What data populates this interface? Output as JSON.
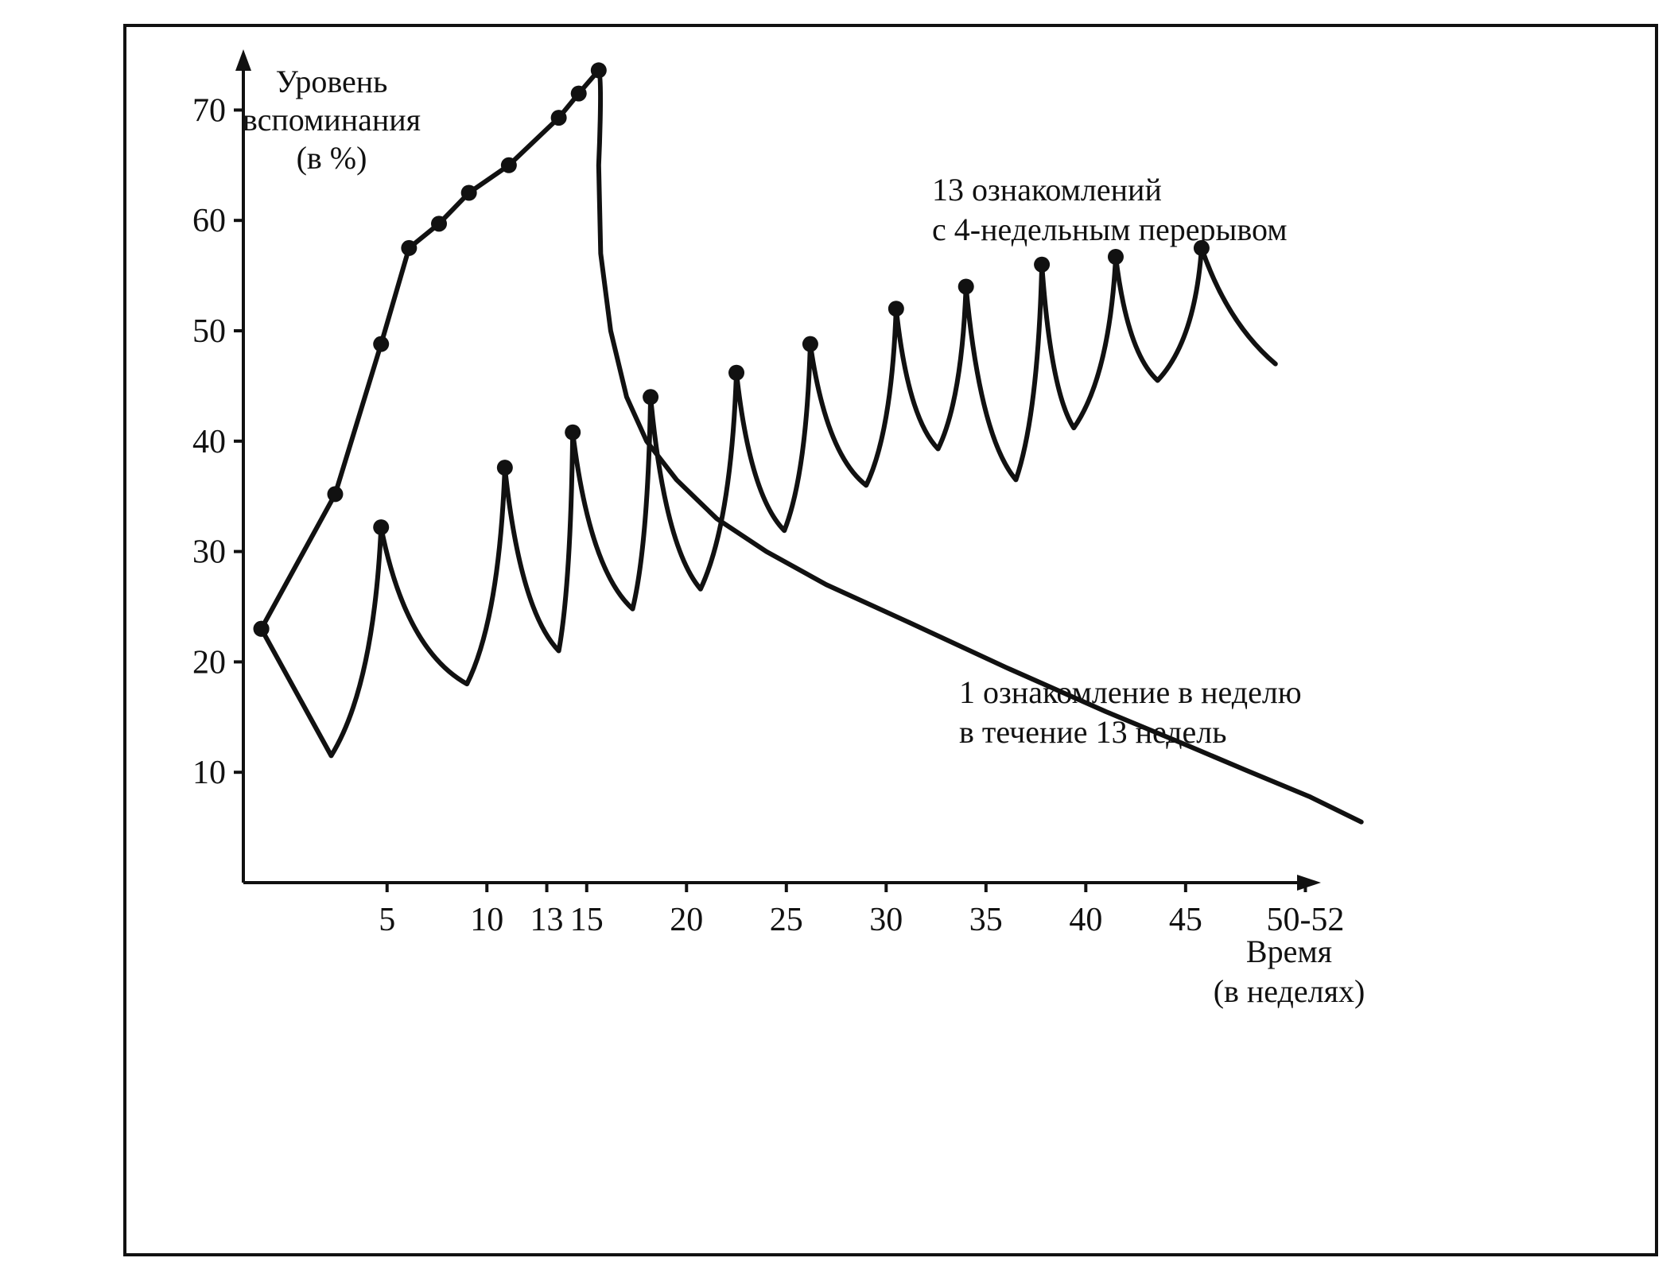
{
  "chart_data": {
    "type": "line",
    "ylabel": [
      "Уровень",
      "вспоминания",
      "(в %)"
    ],
    "xlabel": [
      "Время",
      "(в неделях)"
    ],
    "y_ticks": [
      10,
      20,
      30,
      40,
      50,
      60,
      70
    ],
    "x_ticks": [
      {
        "value": 5,
        "label": "5"
      },
      {
        "value": 10,
        "label": "10"
      },
      {
        "value": 13,
        "label": "13"
      },
      {
        "value": 15,
        "label": "15"
      },
      {
        "value": 20,
        "label": "20"
      },
      {
        "value": 25,
        "label": "25"
      },
      {
        "value": 30,
        "label": "30"
      },
      {
        "value": 35,
        "label": "35"
      },
      {
        "value": 40,
        "label": "40"
      },
      {
        "value": 45,
        "label": "45"
      },
      {
        "value": 51,
        "label": "50-52"
      }
    ],
    "xlim": [
      -2.2,
      51.5
    ],
    "ylim": [
      0,
      75
    ],
    "series": [
      {
        "name": "1 ознакомление в неделю в течение 13 недель",
        "markers": [
          [
            -1.3,
            23
          ],
          [
            2.4,
            35.2
          ],
          [
            4.7,
            48.8
          ],
          [
            6.1,
            57.5
          ],
          [
            7.6,
            59.7
          ],
          [
            9.1,
            62.5
          ],
          [
            11.1,
            65
          ],
          [
            13.6,
            69.3
          ],
          [
            14.6,
            71.5
          ],
          [
            15.6,
            73.6
          ]
        ],
        "decay": [
          [
            15.8,
            73
          ],
          [
            15.6,
            65
          ],
          [
            15.7,
            57
          ],
          [
            16.2,
            50
          ],
          [
            17.0,
            44
          ],
          [
            18.0,
            40
          ],
          [
            19.5,
            36.5
          ],
          [
            21.5,
            33
          ],
          [
            24.0,
            30
          ],
          [
            27.0,
            27
          ],
          [
            31.0,
            23.7
          ],
          [
            36.0,
            19.5
          ],
          [
            41.0,
            15.5
          ],
          [
            45.0,
            12.5
          ],
          [
            48.0,
            10.2
          ],
          [
            51.2,
            7.8
          ],
          [
            53.8,
            5.5
          ]
        ]
      },
      {
        "name": "13 ознакомлений с 4-недельным перерывом",
        "markers": [
          [
            -1.3,
            23
          ],
          [
            4.7,
            32.2
          ],
          [
            10.9,
            37.6
          ],
          [
            14.3,
            40.8
          ],
          [
            18.2,
            44
          ],
          [
            22.5,
            46.2
          ],
          [
            26.2,
            48.8
          ],
          [
            30.5,
            52
          ],
          [
            34.0,
            54
          ],
          [
            37.8,
            56
          ],
          [
            41.5,
            56.7
          ],
          [
            45.8,
            57.5
          ]
        ],
        "troughs": [
          [
            2.2,
            11.5
          ],
          [
            9.0,
            18
          ],
          [
            13.6,
            21
          ],
          [
            17.3,
            24.8
          ],
          [
            20.7,
            26.6
          ],
          [
            24.9,
            31.9
          ],
          [
            29.0,
            36
          ],
          [
            32.6,
            39.3
          ],
          [
            36.5,
            36.5
          ],
          [
            39.4,
            41.2
          ],
          [
            43.6,
            45.5
          ]
        ],
        "tail_end": [
          49.5,
          47
        ]
      }
    ],
    "annotations": [
      {
        "target": 1,
        "lines": [
          "13 ознакомлений",
          "с 4-недельным перерывом"
        ]
      },
      {
        "target": 0,
        "lines": [
          "1 ознакомление в неделю",
          "в течение 13 недель"
        ]
      }
    ]
  }
}
